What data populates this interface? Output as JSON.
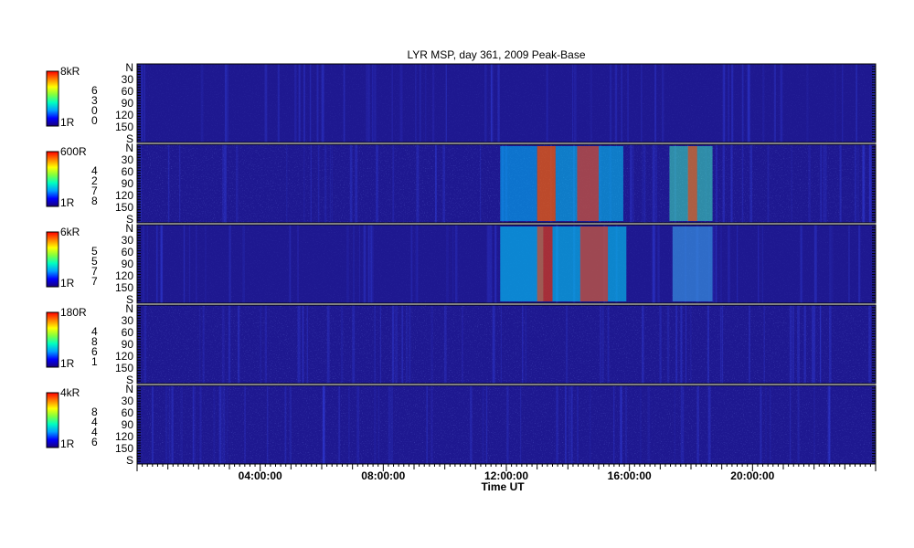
{
  "chart_data": {
    "type": "heatmap",
    "title": "LYR MSP, day 361, 2009 Peak-Base",
    "xlabel": "Time UT",
    "x_ticks": [
      "04:00:00",
      "08:00:00",
      "12:00:00",
      "16:00:00",
      "20:00:00"
    ],
    "xlim_hours": [
      0,
      24
    ],
    "y_ticks": [
      "N",
      "30",
      "60",
      "90",
      "120",
      "150",
      "S"
    ],
    "colormap": [
      "#1a007a",
      "#0000ff",
      "#00a0ff",
      "#00ffc0",
      "#80ff40",
      "#ffff00",
      "#ff8000",
      "#ff0000"
    ],
    "panels": [
      {
        "colorbar_max": "8kR",
        "colorbar_min": "1R",
        "side_label": [
          "6",
          "3",
          "0",
          "0"
        ]
      },
      {
        "colorbar_max": "600R",
        "colorbar_min": "1R",
        "side_label": [
          "4",
          "2",
          "7",
          "8"
        ]
      },
      {
        "colorbar_max": "6kR",
        "colorbar_min": "1R",
        "side_label": [
          "5",
          "5",
          "7",
          "7"
        ]
      },
      {
        "colorbar_max": "180R",
        "colorbar_min": "1R",
        "side_label": [
          "4",
          "8",
          "6",
          "1"
        ]
      },
      {
        "colorbar_max": "4kR",
        "colorbar_min": "1R",
        "side_label": [
          "8",
          "4",
          "4",
          "6"
        ]
      }
    ]
  }
}
